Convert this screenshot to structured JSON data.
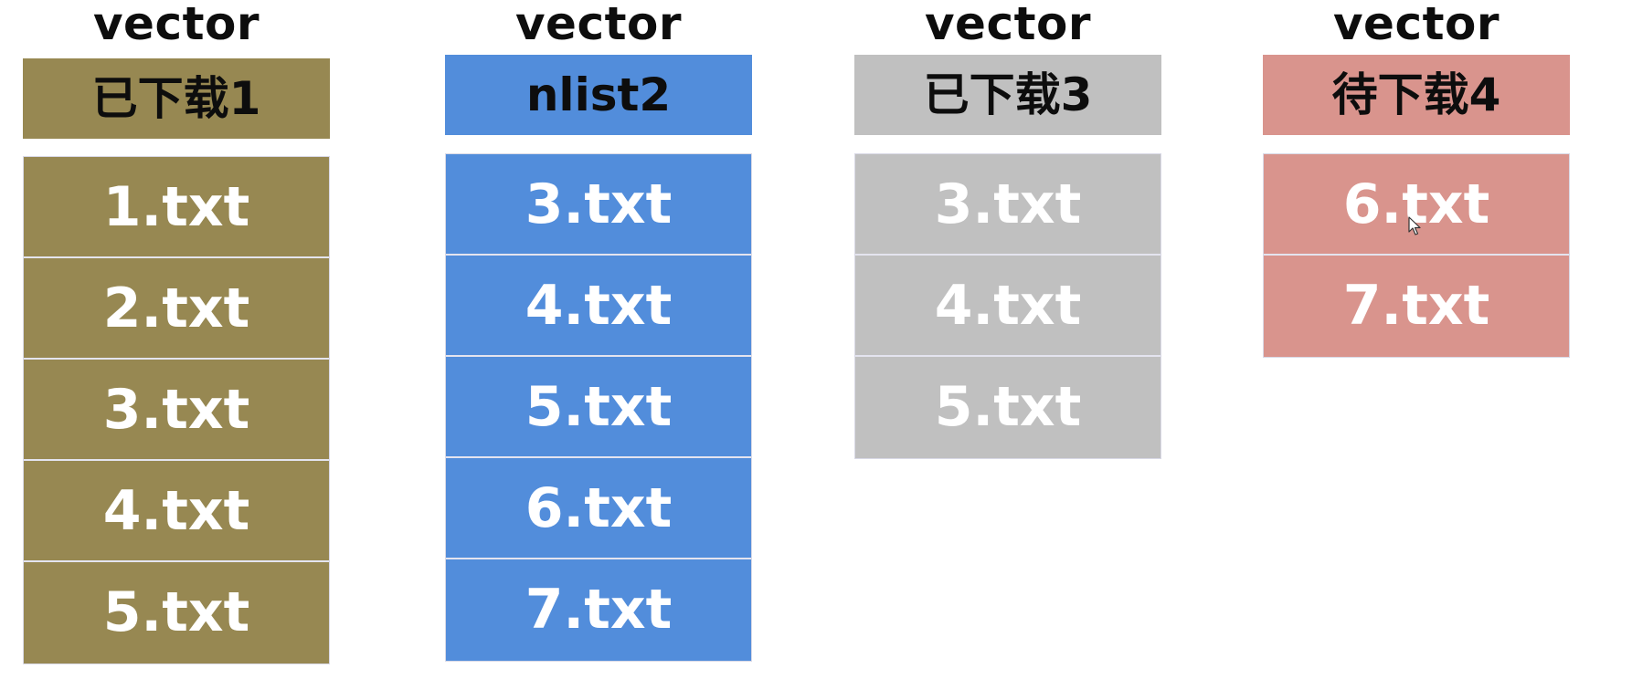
{
  "colors": {
    "downloaded": "#978852",
    "nlist": "#528ddb",
    "downloaded_gray": "#c0c0c0",
    "pending": "#d9948d",
    "divider": "#e4e4ef"
  },
  "columns": [
    {
      "caption": "vector",
      "header": "已下载1",
      "color": "#978852",
      "items": [
        "1.txt",
        "2.txt",
        "3.txt",
        "4.txt",
        "5.txt"
      ]
    },
    {
      "caption": "vector",
      "header": "nlist2",
      "color": "#528ddb",
      "items": [
        "3.txt",
        "4.txt",
        "5.txt",
        "6.txt",
        "7.txt"
      ]
    },
    {
      "caption": "vector",
      "header": "已下载3",
      "color": "#c0c0c0",
      "items": [
        "3.txt",
        "4.txt",
        "5.txt"
      ]
    },
    {
      "caption": "vector",
      "header": "待下载4",
      "color": "#d9948d",
      "items": [
        "6.txt",
        "7.txt"
      ]
    }
  ]
}
